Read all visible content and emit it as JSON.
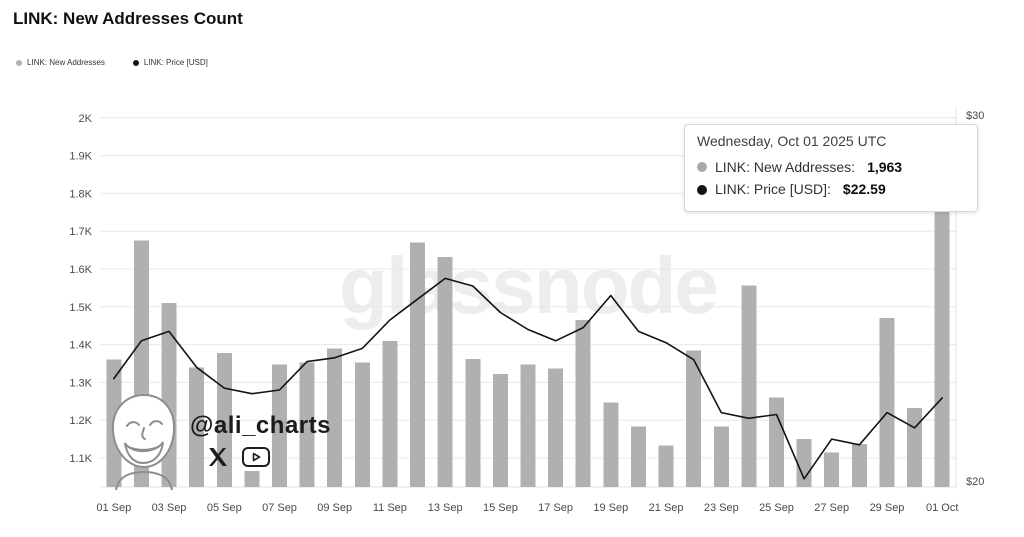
{
  "page": {
    "title": "LINK: New Addresses Count"
  },
  "legend": {
    "items": [
      {
        "label": "LINK: New Addresses",
        "color": "#b0b0b0"
      },
      {
        "label": "LINK: Price [USD]",
        "color": "#111111"
      }
    ]
  },
  "tooltip": {
    "date": "Wednesday, Oct 01 2025 UTC",
    "rows": [
      {
        "label": "LINK: New Addresses:",
        "value": "1,963",
        "dot_color": "#a9a9a9"
      },
      {
        "label": "LINK: Price [USD]:",
        "value": "$22.59",
        "dot_color": "#111111"
      }
    ]
  },
  "watermarks": {
    "glassnode": "glassnode",
    "ali": "@ali_charts"
  },
  "chart_data": {
    "type": "bar",
    "title": "LINK: New Addresses Count",
    "x": [
      "01 Sep",
      "02 Sep",
      "03 Sep",
      "04 Sep",
      "05 Sep",
      "06 Sep",
      "07 Sep",
      "08 Sep",
      "09 Sep",
      "10 Sep",
      "11 Sep",
      "12 Sep",
      "13 Sep",
      "14 Sep",
      "15 Sep",
      "16 Sep",
      "17 Sep",
      "18 Sep",
      "19 Sep",
      "20 Sep",
      "21 Sep",
      "22 Sep",
      "23 Sep",
      "24 Sep",
      "25 Sep",
      "26 Sep",
      "27 Sep",
      "28 Sep",
      "29 Sep",
      "30 Sep",
      "01 Oct"
    ],
    "x_ticks": [
      "01 Sep",
      "03 Sep",
      "05 Sep",
      "07 Sep",
      "09 Sep",
      "11 Sep",
      "13 Sep",
      "15 Sep",
      "17 Sep",
      "19 Sep",
      "21 Sep",
      "23 Sep",
      "25 Sep",
      "27 Sep",
      "29 Sep",
      "01 Oct"
    ],
    "series": [
      {
        "name": "LINK: New Addresses",
        "type": "bar",
        "axis": "left",
        "color": "#b0b0b0",
        "values": [
          1360,
          1675,
          1510,
          1340,
          1378,
          1065,
          1347,
          1352,
          1390,
          1352,
          1410,
          1670,
          1632,
          1362,
          1322,
          1348,
          1337,
          1465,
          1247,
          1183,
          1133,
          1385,
          1183,
          1556,
          1260,
          1150,
          1115,
          1137,
          1470,
          1232,
          1963
        ]
      },
      {
        "name": "LINK: Price [USD]",
        "type": "line",
        "axis": "right",
        "color": "#141414",
        "values": [
          23.1,
          24.1,
          24.35,
          23.4,
          22.85,
          22.7,
          22.8,
          23.55,
          23.65,
          23.9,
          24.65,
          25.2,
          25.75,
          25.55,
          24.85,
          24.4,
          24.1,
          24.45,
          25.3,
          24.35,
          24.05,
          23.6,
          22.2,
          22.05,
          22.15,
          20.45,
          21.5,
          21.35,
          22.2,
          21.8,
          22.59
        ]
      }
    ],
    "left_axis": {
      "ticks": [
        "2K",
        "1.9K",
        "1.8K",
        "1.7K",
        "1.6K",
        "1.5K",
        "1.4K",
        "1.3K",
        "1.2K",
        "1.1K"
      ],
      "tick_values": [
        2000,
        1900,
        1800,
        1700,
        1600,
        1500,
        1400,
        1300,
        1200,
        1100
      ]
    },
    "right_axis": {
      "ticks": [
        "$30",
        "$20"
      ],
      "tick_values": [
        30,
        20
      ]
    },
    "grid": "horizontal",
    "legend_position": "top-left"
  }
}
